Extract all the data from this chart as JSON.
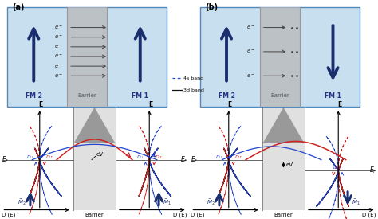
{
  "fig_width": 4.74,
  "fig_height": 2.75,
  "dpi": 100,
  "bg_color": "#c8dff0",
  "barrier_color_light": "#d0d0d0",
  "barrier_color_dark": "#888888",
  "arrow_color": "#1a2e6e",
  "label_a": "(a)",
  "label_b": "(b)",
  "fm2_label": "FM 2",
  "barrier_label": "Barrier",
  "fm1_label": "FM 1",
  "e_label": "E",
  "legend_4s": "4s band",
  "legend_3d": "3d band",
  "pink_fill": "#ffaaaa",
  "red_curve": "#cc2222",
  "blue_curve": "#2244cc",
  "black_curve": "#111111"
}
